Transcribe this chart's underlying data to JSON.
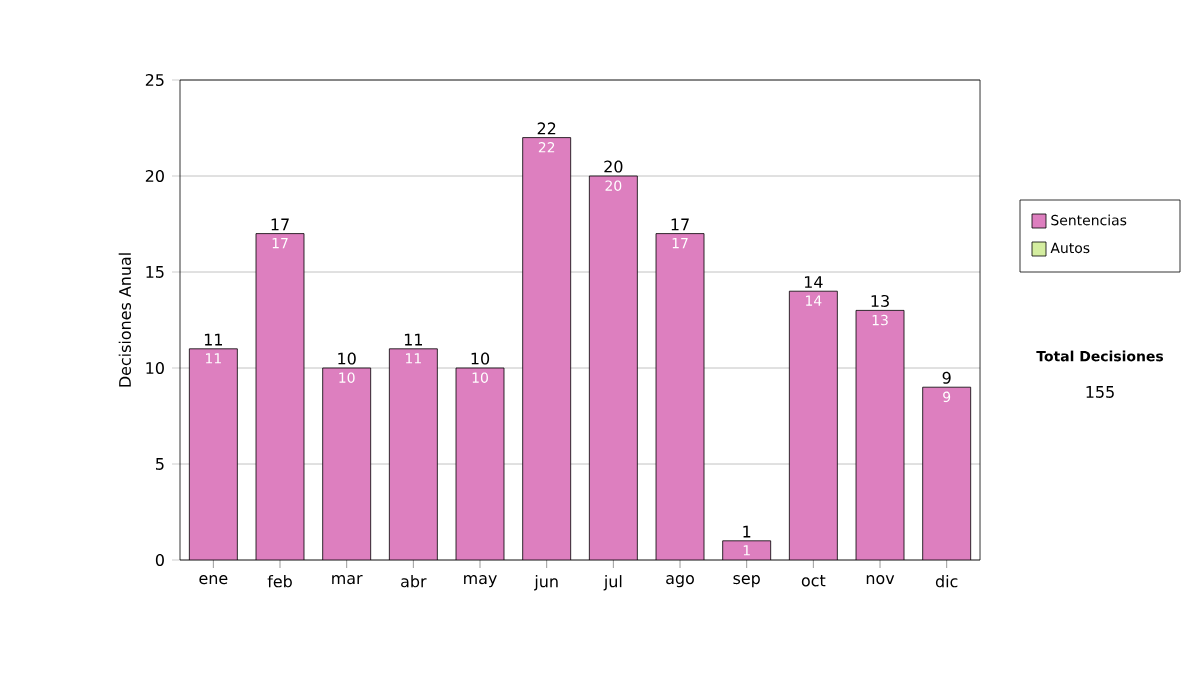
{
  "chart_data": {
    "type": "bar",
    "ylabel": "Decisiones Anual",
    "categories": [
      "ene",
      "feb",
      "mar",
      "abr",
      "may",
      "jun",
      "jul",
      "ago",
      "sep",
      "oct",
      "nov",
      "dic"
    ],
    "series": [
      {
        "name": "Sentencias",
        "color": "#dd7fbf",
        "values": [
          11,
          17,
          10,
          11,
          10,
          22,
          20,
          17,
          1,
          14,
          13,
          9
        ]
      },
      {
        "name": "Autos",
        "color": "#d4eda0",
        "values": [
          null,
          null,
          null,
          null,
          null,
          null,
          null,
          null,
          null,
          null,
          null,
          null
        ]
      }
    ],
    "data_labels": true,
    "totals": [
      "11",
      "17",
      "10",
      "11",
      "10",
      "22",
      "20",
      "17",
      "1",
      "14",
      "13",
      "9"
    ],
    "ylim": [
      0,
      25
    ],
    "yticks": [
      0,
      5,
      10,
      15,
      20,
      25
    ],
    "grid": "y",
    "legend": "right",
    "annotations": [
      "Total Decisiones",
      "155"
    ]
  }
}
